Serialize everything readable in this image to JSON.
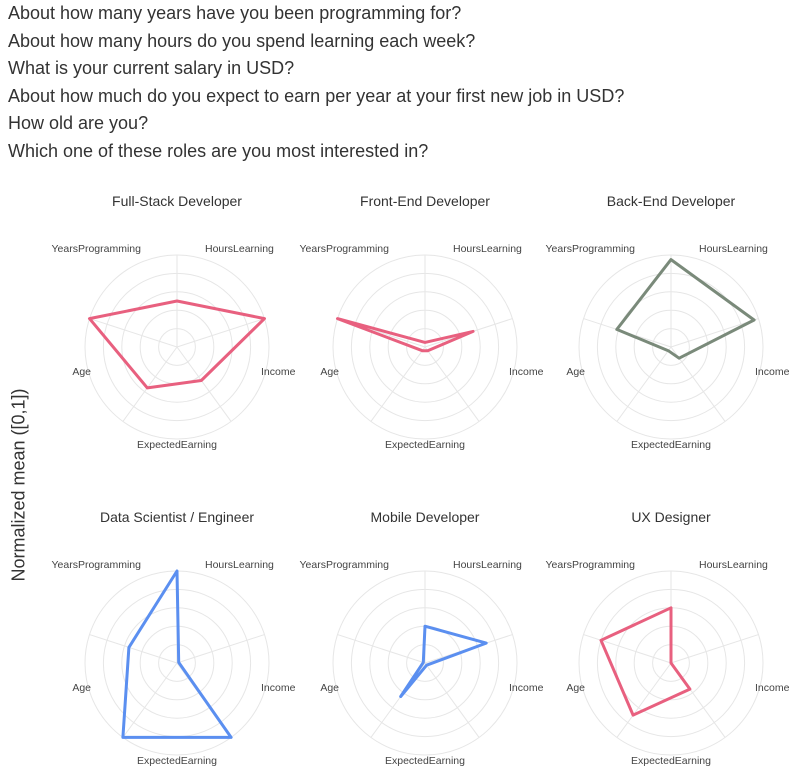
{
  "questions": [
    "About how many years have you been programming for?",
    "About how many hours do you spend learning each week?",
    "What is your current salary in USD?",
    "About how much do you expect to earn per year at your first new job in USD?",
    "How old are you?",
    "Which one of these roles are you most interested in?"
  ],
  "ylabel": "Normalized mean ([0,1])",
  "chart_data": {
    "type": "radar",
    "axes": [
      "YearsProgramming",
      "HoursLearning",
      "Income",
      "ExpectedEarning",
      "Age"
    ],
    "range": [
      0,
      1
    ],
    "rings": 5,
    "panels": [
      {
        "title": "Full-Stack Developer",
        "color": "#e8607f",
        "values": [
          0.5,
          1.0,
          0.45,
          0.55,
          1.0
        ]
      },
      {
        "title": "Front-End Developer",
        "color": "#e8607f",
        "values": [
          0.05,
          0.55,
          0.05,
          0.05,
          1.0
        ]
      },
      {
        "title": "Back-End Developer",
        "color": "#7a8a7a",
        "values": [
          0.95,
          0.95,
          0.15,
          0.05,
          0.62
        ]
      },
      {
        "title": "Data Scientist / Engineer",
        "color": "#5b8ff0",
        "values": [
          1.0,
          0.02,
          1.0,
          1.0,
          0.55
        ]
      },
      {
        "title": "Mobile Developer",
        "color": "#5b8ff0",
        "values": [
          0.4,
          0.7,
          0.03,
          0.45,
          0.02
        ]
      },
      {
        "title": "UX Designer",
        "color": "#e8607f",
        "values": [
          0.6,
          0.0,
          0.35,
          0.7,
          0.8
        ]
      }
    ]
  }
}
